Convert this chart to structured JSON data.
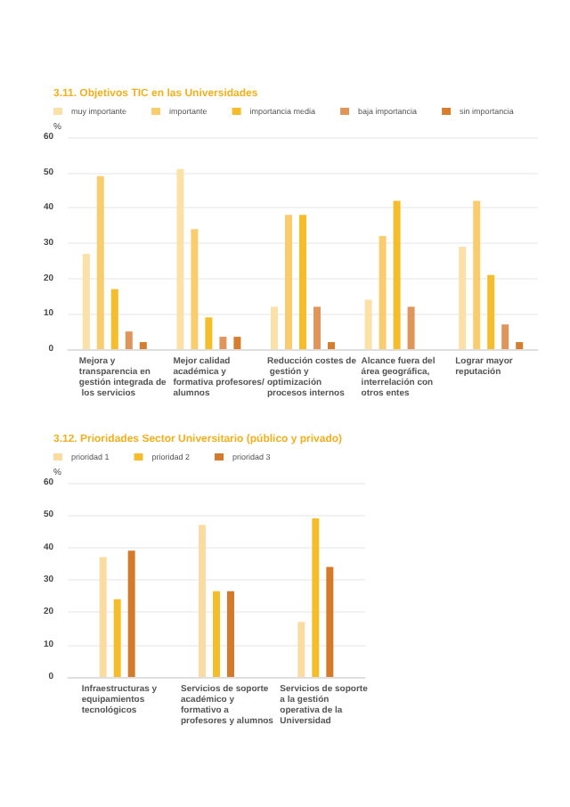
{
  "chart_data": [
    {
      "type": "bar",
      "title": "3.11. Objetivos TIC en las Universidades",
      "ylabel": "%",
      "categories": [
        "Mejora y transparencia en gestión integrada de los servicios",
        "Mejor calidad académica y formativa profesores/alumnos",
        "Reducción costes de gestión y optimización procesos internos",
        "Alcance fuera del área geográfica, interrelación con otros entes",
        "Lograr mayor reputación"
      ],
      "series": [
        {
          "name": "muy importante",
          "color": "#fbe0a8",
          "values": [
            27,
            51,
            12,
            14,
            29
          ]
        },
        {
          "name": "importante",
          "color": "#f9cd6e",
          "values": [
            49,
            34,
            38,
            32,
            42
          ]
        },
        {
          "name": "importancia media",
          "color": "#f5bd2a",
          "values": [
            17,
            9,
            38,
            42,
            21
          ]
        },
        {
          "name": "baja importancia",
          "color": "#e0965a",
          "values": [
            5,
            3.5,
            12,
            12,
            7
          ]
        },
        {
          "name": "sin importancia",
          "color": "#d67d2e",
          "values": [
            2,
            3.5,
            2,
            0,
            2
          ]
        }
      ],
      "ylim": [
        0,
        60
      ],
      "yticks": [
        0,
        10,
        20,
        30,
        40,
        50,
        60
      ],
      "grid": "y",
      "legend": "top left"
    },
    {
      "type": "bar",
      "title": "3.12. Prioridades Sector Universitario (público y privado)",
      "ylabel": "%",
      "categories": [
        "Infraestructuras y equipamientos tecnológicos",
        "Servicios de soporte académico y formativo a profesores y alumnos",
        "Servicios de soporte a la gestión operativa de la Universidad"
      ],
      "series": [
        {
          "name": "prioridad 1",
          "color": "#fbdca0",
          "values": [
            37,
            47,
            17
          ]
        },
        {
          "name": "prioridad 2",
          "color": "#f5bd2a",
          "values": [
            24,
            26.5,
            49
          ]
        },
        {
          "name": "prioridad 3",
          "color": "#d47a2a",
          "values": [
            39,
            26.5,
            34
          ]
        }
      ],
      "ylim": [
        0,
        60
      ],
      "yticks": [
        0,
        10,
        20,
        30,
        40,
        50,
        60
      ],
      "grid": "y",
      "legend": "top left"
    }
  ]
}
